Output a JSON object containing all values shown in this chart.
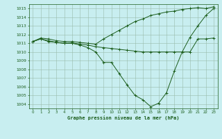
{
  "title": "Graphe pression niveau de la mer (hPa)",
  "background_color": "#c8eef0",
  "grid_color": "#99bbaa",
  "line_color": "#1a5c1a",
  "marker_color": "#1a5c1a",
  "xlim": [
    -0.5,
    23.5
  ],
  "ylim": [
    1003.5,
    1015.5
  ],
  "yticks": [
    1004,
    1005,
    1006,
    1007,
    1008,
    1009,
    1010,
    1011,
    1012,
    1013,
    1014,
    1015
  ],
  "xticks": [
    0,
    1,
    2,
    3,
    4,
    5,
    6,
    7,
    8,
    9,
    10,
    11,
    12,
    13,
    14,
    15,
    16,
    17,
    18,
    19,
    20,
    21,
    22,
    23
  ],
  "series": [
    [
      1011.2,
      1011.5,
      1011.2,
      1011.1,
      1011.0,
      1011.0,
      1010.8,
      1010.5,
      1010.0,
      1008.8,
      1008.8,
      1007.5,
      1006.2,
      1005.0,
      1004.5,
      1003.7,
      1004.1,
      1005.3,
      1007.8,
      1010.0,
      1011.7,
      1013.0,
      1014.2,
      1015.0
    ],
    [
      1011.2,
      1011.5,
      1011.3,
      1011.1,
      1011.0,
      1011.05,
      1010.9,
      1010.8,
      1010.6,
      1010.5,
      1010.4,
      1010.3,
      1010.2,
      1010.1,
      1010.0,
      1010.0,
      1010.0,
      1010.0,
      1010.0,
      1010.0,
      1010.0,
      1011.5,
      1011.5,
      1011.6
    ],
    [
      1011.2,
      1011.6,
      1011.5,
      1011.3,
      1011.2,
      1011.2,
      1011.1,
      1011.0,
      1010.9,
      1011.5,
      1012.0,
      1012.5,
      1013.0,
      1013.5,
      1013.8,
      1014.2,
      1014.4,
      1014.6,
      1014.7,
      1014.9,
      1015.0,
      1015.1,
      1015.0,
      1015.2
    ]
  ],
  "figsize": [
    3.2,
    2.0
  ],
  "dpi": 100
}
